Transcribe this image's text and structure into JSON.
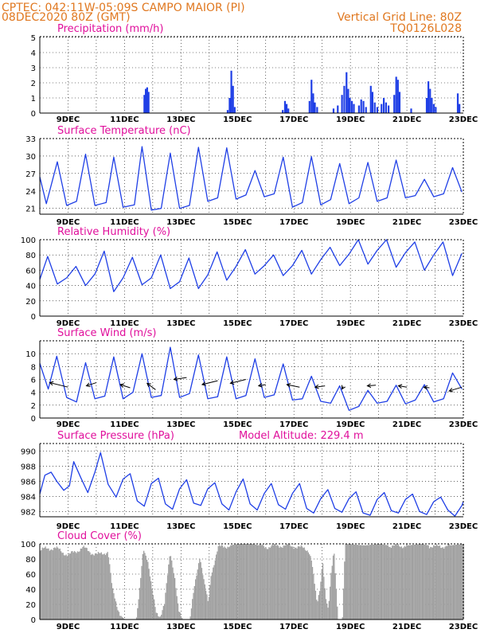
{
  "header": {
    "line1": "CPTEC:  042:11W-05:09S  CAMPO MAIOR (PI)",
    "line2": "08DEC2020 80Z (GMT)",
    "grid_note": "Vertical Grid Line: 80Z",
    "code": "TQ0126L028"
  },
  "colors": {
    "header": "#e07820",
    "title": "#e0109c",
    "series": "#1f3fe6",
    "cloud": "#a0a0a0"
  },
  "x_labels": [
    "9DEC",
    "11DEC",
    "13DEC",
    "15DEC",
    "17DEC",
    "19DEC",
    "21DEC",
    "23DEC"
  ],
  "chart_data": [
    {
      "type": "bar",
      "title": "Precipitation (mm/h)",
      "ylim": [
        0,
        5
      ],
      "yticks": [
        "0",
        "1",
        "2",
        "3",
        "4",
        "5"
      ],
      "x_range_days": [
        8,
        23
      ],
      "bars": [
        [
          11.7,
          1.2
        ],
        [
          11.75,
          1.6
        ],
        [
          11.8,
          1.7
        ],
        [
          11.85,
          1.4
        ],
        [
          14.65,
          0.2
        ],
        [
          14.72,
          1.0
        ],
        [
          14.78,
          2.8
        ],
        [
          14.84,
          1.8
        ],
        [
          14.9,
          0.4
        ],
        [
          16.6,
          0.2
        ],
        [
          16.68,
          0.8
        ],
        [
          16.74,
          0.6
        ],
        [
          16.8,
          0.3
        ],
        [
          17.55,
          0.8
        ],
        [
          17.62,
          2.2
        ],
        [
          17.68,
          1.3
        ],
        [
          17.74,
          0.7
        ],
        [
          17.82,
          0.4
        ],
        [
          18.4,
          0.3
        ],
        [
          18.55,
          0.5
        ],
        [
          18.7,
          1.2
        ],
        [
          18.78,
          1.8
        ],
        [
          18.86,
          2.7
        ],
        [
          18.92,
          1.6
        ],
        [
          18.98,
          1.0
        ],
        [
          19.05,
          0.8
        ],
        [
          19.12,
          0.6
        ],
        [
          19.3,
          0.5
        ],
        [
          19.38,
          0.9
        ],
        [
          19.46,
          0.8
        ],
        [
          19.55,
          0.4
        ],
        [
          19.72,
          1.8
        ],
        [
          19.78,
          1.4
        ],
        [
          19.86,
          0.7
        ],
        [
          19.95,
          0.4
        ],
        [
          20.1,
          0.6
        ],
        [
          20.18,
          1.0
        ],
        [
          20.26,
          0.7
        ],
        [
          20.35,
          0.5
        ],
        [
          20.55,
          1.2
        ],
        [
          20.62,
          2.4
        ],
        [
          20.68,
          2.2
        ],
        [
          20.74,
          1.4
        ],
        [
          21.15,
          0.3
        ],
        [
          21.7,
          1.0
        ],
        [
          21.76,
          2.1
        ],
        [
          21.82,
          1.6
        ],
        [
          21.88,
          1.0
        ],
        [
          21.95,
          0.6
        ],
        [
          22.02,
          0.4
        ],
        [
          22.8,
          1.3
        ],
        [
          22.86,
          0.6
        ]
      ]
    },
    {
      "type": "line",
      "title": "Surface Temperature (nC)",
      "ylim": [
        20,
        33
      ],
      "yticks": [
        "21",
        "24",
        "27",
        "30",
        "33"
      ],
      "x_range_days": [
        8,
        23
      ],
      "points": [
        [
          8.0,
          26.4
        ],
        [
          8.23,
          21.8
        ],
        [
          8.62,
          29.0
        ],
        [
          8.95,
          21.5
        ],
        [
          9.3,
          22.2
        ],
        [
          9.62,
          30.3
        ],
        [
          9.95,
          21.5
        ],
        [
          10.35,
          22.0
        ],
        [
          10.62,
          29.8
        ],
        [
          10.95,
          21.2
        ],
        [
          11.35,
          21.6
        ],
        [
          11.62,
          31.6
        ],
        [
          11.95,
          20.7
        ],
        [
          12.3,
          21.0
        ],
        [
          12.62,
          30.5
        ],
        [
          12.95,
          21.0
        ],
        [
          13.3,
          21.5
        ],
        [
          13.62,
          31.5
        ],
        [
          13.95,
          22.2
        ],
        [
          14.3,
          22.8
        ],
        [
          14.62,
          31.4
        ],
        [
          14.95,
          22.6
        ],
        [
          15.3,
          23.3
        ],
        [
          15.62,
          27.5
        ],
        [
          15.95,
          23.0
        ],
        [
          16.3,
          23.5
        ],
        [
          16.62,
          29.8
        ],
        [
          16.95,
          21.2
        ],
        [
          17.3,
          22.0
        ],
        [
          17.62,
          29.9
        ],
        [
          17.95,
          21.6
        ],
        [
          18.3,
          22.5
        ],
        [
          18.62,
          28.7
        ],
        [
          18.95,
          21.8
        ],
        [
          19.3,
          22.8
        ],
        [
          19.62,
          28.9
        ],
        [
          19.95,
          22.2
        ],
        [
          20.3,
          22.8
        ],
        [
          20.62,
          29.3
        ],
        [
          20.95,
          22.8
        ],
        [
          21.3,
          23.2
        ],
        [
          21.62,
          26.0
        ],
        [
          21.95,
          23.0
        ],
        [
          22.3,
          23.5
        ],
        [
          22.62,
          28.0
        ],
        [
          22.95,
          23.8
        ]
      ]
    },
    {
      "type": "line",
      "title": "Relative Humidity (%)",
      "ylim": [
        0,
        100
      ],
      "yticks": [
        "0",
        "20",
        "40",
        "60",
        "80",
        "100"
      ],
      "x_range_days": [
        8,
        23
      ],
      "points": [
        [
          8.0,
          48
        ],
        [
          8.28,
          78
        ],
        [
          8.62,
          42
        ],
        [
          8.95,
          50
        ],
        [
          9.28,
          65
        ],
        [
          9.62,
          40
        ],
        [
          9.95,
          55
        ],
        [
          10.28,
          85
        ],
        [
          10.62,
          32
        ],
        [
          10.95,
          50
        ],
        [
          11.28,
          77
        ],
        [
          11.62,
          41
        ],
        [
          11.95,
          50
        ],
        [
          12.28,
          80
        ],
        [
          12.62,
          36
        ],
        [
          12.95,
          45
        ],
        [
          13.28,
          76
        ],
        [
          13.62,
          36
        ],
        [
          13.95,
          54
        ],
        [
          14.28,
          84
        ],
        [
          14.62,
          47
        ],
        [
          14.95,
          65
        ],
        [
          15.28,
          87
        ],
        [
          15.62,
          55
        ],
        [
          15.95,
          66
        ],
        [
          16.28,
          80
        ],
        [
          16.62,
          53
        ],
        [
          16.95,
          66
        ],
        [
          17.28,
          86
        ],
        [
          17.62,
          55
        ],
        [
          17.95,
          74
        ],
        [
          18.28,
          90
        ],
        [
          18.62,
          66
        ],
        [
          18.95,
          81
        ],
        [
          19.28,
          100
        ],
        [
          19.62,
          68
        ],
        [
          19.95,
          86
        ],
        [
          20.28,
          100
        ],
        [
          20.62,
          64
        ],
        [
          20.95,
          83
        ],
        [
          21.28,
          97
        ],
        [
          21.62,
          60
        ],
        [
          21.95,
          80
        ],
        [
          22.28,
          97
        ],
        [
          22.62,
          53
        ],
        [
          22.95,
          82
        ]
      ]
    },
    {
      "type": "line",
      "title": "Surface Wind (m/s)",
      "ylim": [
        0,
        12
      ],
      "yticks": [
        "0",
        "2",
        "4",
        "6",
        "8",
        "10"
      ],
      "x_range_days": [
        8,
        23
      ],
      "points": [
        [
          8.0,
          8.5
        ],
        [
          8.3,
          4.5
        ],
        [
          8.6,
          9.6
        ],
        [
          8.95,
          3.2
        ],
        [
          9.3,
          2.5
        ],
        [
          9.62,
          8.6
        ],
        [
          9.95,
          3.0
        ],
        [
          10.3,
          3.4
        ],
        [
          10.62,
          9.5
        ],
        [
          10.95,
          3.0
        ],
        [
          11.3,
          4.0
        ],
        [
          11.62,
          10.0
        ],
        [
          11.95,
          3.2
        ],
        [
          12.3,
          3.5
        ],
        [
          12.62,
          11.0
        ],
        [
          12.95,
          3.2
        ],
        [
          13.3,
          3.8
        ],
        [
          13.62,
          9.8
        ],
        [
          13.95,
          3.0
        ],
        [
          14.3,
          3.3
        ],
        [
          14.62,
          9.5
        ],
        [
          14.95,
          3.0
        ],
        [
          15.3,
          3.5
        ],
        [
          15.62,
          9.2
        ],
        [
          15.95,
          3.2
        ],
        [
          16.3,
          3.6
        ],
        [
          16.62,
          8.4
        ],
        [
          16.95,
          2.8
        ],
        [
          17.3,
          3.0
        ],
        [
          17.62,
          6.5
        ],
        [
          17.95,
          2.6
        ],
        [
          18.3,
          2.3
        ],
        [
          18.62,
          5.0
        ],
        [
          18.95,
          1.2
        ],
        [
          19.3,
          1.8
        ],
        [
          19.62,
          4.3
        ],
        [
          19.95,
          2.3
        ],
        [
          20.3,
          2.6
        ],
        [
          20.62,
          5.1
        ],
        [
          20.95,
          2.2
        ],
        [
          21.3,
          2.8
        ],
        [
          21.62,
          5.2
        ],
        [
          21.95,
          2.5
        ],
        [
          22.3,
          3.0
        ],
        [
          22.62,
          7.0
        ],
        [
          22.95,
          4.5
        ]
      ],
      "arrows": [
        [
          8.35,
          5.5,
          9.0,
          4.8
        ],
        [
          9.65,
          5.0,
          10.0,
          5.5
        ],
        [
          10.85,
          5.2,
          11.2,
          4.7
        ],
        [
          11.8,
          5.4,
          12.1,
          4.4
        ],
        [
          12.75,
          6.0,
          13.2,
          6.3
        ],
        [
          13.75,
          5.2,
          14.3,
          5.8
        ],
        [
          14.75,
          5.4,
          15.3,
          6.0
        ],
        [
          15.75,
          5.0,
          16.0,
          5.2
        ],
        [
          16.75,
          5.2,
          17.2,
          4.8
        ],
        [
          17.75,
          4.8,
          18.1,
          5.0
        ],
        [
          18.7,
          4.5,
          18.75,
          4.9
        ],
        [
          19.6,
          5.0,
          19.9,
          5.1
        ],
        [
          20.7,
          5.0,
          21.0,
          4.8
        ],
        [
          21.6,
          4.8,
          21.8,
          4.7
        ],
        [
          22.5,
          4.2,
          22.95,
          4.8
        ]
      ]
    },
    {
      "type": "line",
      "title": "Surface Pressure (hPa)",
      "subtitle": "Model Altitude: 229.4  m",
      "ylim": [
        981.3,
        991
      ],
      "yticks": [
        "982",
        "984",
        "986",
        "988",
        "990"
      ],
      "x_range_days": [
        8,
        23
      ],
      "points": [
        [
          8.0,
          984.3
        ],
        [
          8.18,
          986.8
        ],
        [
          8.4,
          987.2
        ],
        [
          8.6,
          986.0
        ],
        [
          8.85,
          984.8
        ],
        [
          9.05,
          985.4
        ],
        [
          9.2,
          988.6
        ],
        [
          9.45,
          986.5
        ],
        [
          9.7,
          984.5
        ],
        [
          9.95,
          987.2
        ],
        [
          10.15,
          989.8
        ],
        [
          10.42,
          985.6
        ],
        [
          10.7,
          983.9
        ],
        [
          10.95,
          986.3
        ],
        [
          11.2,
          987.0
        ],
        [
          11.45,
          983.4
        ],
        [
          11.7,
          982.7
        ],
        [
          11.95,
          985.7
        ],
        [
          12.2,
          986.4
        ],
        [
          12.45,
          983.0
        ],
        [
          12.7,
          982.3
        ],
        [
          12.95,
          985.0
        ],
        [
          13.2,
          986.2
        ],
        [
          13.45,
          983.1
        ],
        [
          13.7,
          982.8
        ],
        [
          13.95,
          985.0
        ],
        [
          14.2,
          985.8
        ],
        [
          14.45,
          983.0
        ],
        [
          14.7,
          982.2
        ],
        [
          14.95,
          984.6
        ],
        [
          15.2,
          986.3
        ],
        [
          15.45,
          983.0
        ],
        [
          15.7,
          982.2
        ],
        [
          15.95,
          984.4
        ],
        [
          16.2,
          985.7
        ],
        [
          16.45,
          982.9
        ],
        [
          16.7,
          982.3
        ],
        [
          16.95,
          984.4
        ],
        [
          17.2,
          985.7
        ],
        [
          17.45,
          982.4
        ],
        [
          17.7,
          981.8
        ],
        [
          17.95,
          983.7
        ],
        [
          18.2,
          984.9
        ],
        [
          18.45,
          982.4
        ],
        [
          18.7,
          981.9
        ],
        [
          18.95,
          983.7
        ],
        [
          19.2,
          984.6
        ],
        [
          19.45,
          981.8
        ],
        [
          19.7,
          981.5
        ],
        [
          19.95,
          983.6
        ],
        [
          20.2,
          984.5
        ],
        [
          20.45,
          982.1
        ],
        [
          20.7,
          981.8
        ],
        [
          20.95,
          983.6
        ],
        [
          21.2,
          984.3
        ],
        [
          21.45,
          982.0
        ],
        [
          21.7,
          981.6
        ],
        [
          21.95,
          983.3
        ],
        [
          22.2,
          983.9
        ],
        [
          22.45,
          982.2
        ],
        [
          22.7,
          981.4
        ],
        [
          22.95,
          982.8
        ],
        [
          23.0,
          983.3
        ]
      ]
    },
    {
      "type": "bar",
      "title": "Cloud Cover (%)",
      "ylim": [
        0,
        100
      ],
      "yticks": [
        "0",
        "20",
        "40",
        "60",
        "80",
        "100"
      ],
      "x_range_days": [
        8,
        23
      ],
      "profile": [
        [
          8.0,
          92
        ],
        [
          8.5,
          95
        ],
        [
          9.0,
          85
        ],
        [
          9.5,
          95
        ],
        [
          10.0,
          85
        ],
        [
          10.4,
          90
        ],
        [
          10.55,
          40
        ],
        [
          10.7,
          20
        ],
        [
          10.85,
          5
        ],
        [
          11.0,
          0
        ],
        [
          11.4,
          0
        ],
        [
          11.5,
          30
        ],
        [
          11.65,
          95
        ],
        [
          11.8,
          80
        ],
        [
          11.95,
          40
        ],
        [
          12.1,
          10
        ],
        [
          12.25,
          5
        ],
        [
          12.4,
          20
        ],
        [
          12.6,
          90
        ],
        [
          12.75,
          60
        ],
        [
          12.9,
          10
        ],
        [
          13.05,
          0
        ],
        [
          13.3,
          0
        ],
        [
          13.45,
          40
        ],
        [
          13.65,
          85
        ],
        [
          13.8,
          50
        ],
        [
          13.95,
          20
        ],
        [
          14.05,
          60
        ],
        [
          14.3,
          95
        ],
        [
          15.0,
          100
        ],
        [
          15.5,
          100
        ],
        [
          16.0,
          96
        ],
        [
          16.5,
          98
        ],
        [
          17.0,
          97
        ],
        [
          17.5,
          92
        ],
        [
          17.6,
          80
        ],
        [
          17.7,
          50
        ],
        [
          17.8,
          20
        ],
        [
          17.9,
          40
        ],
        [
          18.0,
          80
        ],
        [
          18.1,
          30
        ],
        [
          18.2,
          10
        ],
        [
          18.3,
          60
        ],
        [
          18.4,
          95
        ],
        [
          18.5,
          30
        ],
        [
          18.55,
          0
        ],
        [
          18.7,
          0
        ],
        [
          18.8,
          100
        ],
        [
          19.5,
          98
        ],
        [
          20.0,
          100
        ],
        [
          20.5,
          97
        ],
        [
          21.0,
          98
        ],
        [
          21.5,
          100
        ],
        [
          22.0,
          96
        ],
        [
          22.5,
          98
        ],
        [
          23.0,
          100
        ]
      ]
    }
  ]
}
